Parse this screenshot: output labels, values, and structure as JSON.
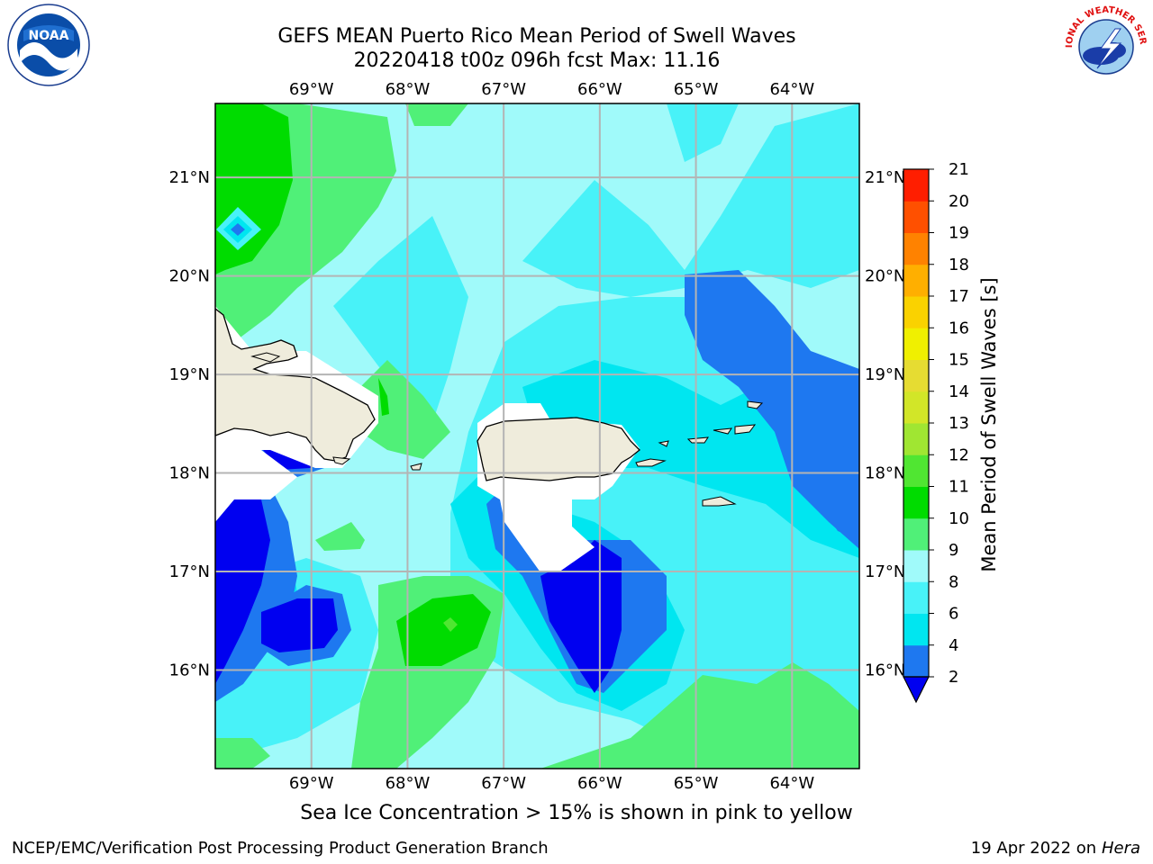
{
  "title": {
    "line1": "GEFS MEAN Puerto Rico Mean Period of Swell Waves",
    "line2": "20220418 t00z 096h fcst   Max: 11.16"
  },
  "map": {
    "lon_range": [
      -70.0,
      -63.3
    ],
    "lat_range": [
      15.0,
      21.75
    ],
    "lon_ticks": [
      "69°W",
      "68°W",
      "67°W",
      "66°W",
      "65°W",
      "64°W"
    ],
    "lat_ticks": [
      "21°N",
      "20°N",
      "19°N",
      "18°N",
      "17°N",
      "16°N"
    ],
    "grid": true,
    "land_color": "#efecdc",
    "coast_color": "#000000"
  },
  "colorbar": {
    "label": "Mean Period of Swell Waves [s]",
    "ticks": [
      "2",
      "4",
      "6",
      "8",
      "9",
      "10",
      "11",
      "12",
      "13",
      "14",
      "15",
      "16",
      "17",
      "18",
      "19",
      "20",
      "21"
    ],
    "colors": [
      "#0000f0",
      "#1e78f0",
      "#00e6f0",
      "#48f2f8",
      "#a0fafa",
      "#50f078",
      "#00dc00",
      "#50e632",
      "#a0e632",
      "#d2e628",
      "#e6dc32",
      "#f0f000",
      "#fad200",
      "#ffaf00",
      "#ff8200",
      "#ff5000",
      "#ff1e00",
      "#ff0000"
    ],
    "extend": "min"
  },
  "caption": "Sea Ice Concentration > 15% is shown in pink to yellow",
  "footer": {
    "left": "NCEP/EMC/Verification Post Processing Product Generation Branch",
    "right_prefix": "19 Apr 2022 on ",
    "right_host": "Hera"
  },
  "logos": {
    "noaa": "NOAA",
    "nws": "NATIONAL WEATHER SERVICE"
  }
}
